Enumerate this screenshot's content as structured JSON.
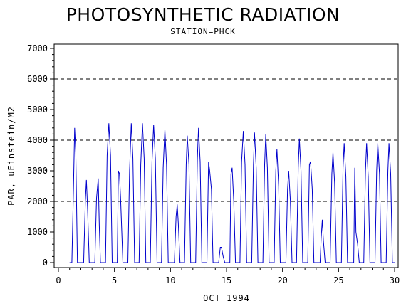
{
  "chart_data": {
    "type": "line",
    "title": "PHOTOSYNTHETIC RADIATION",
    "subtitle": "STATION=PHCK",
    "xlabel": "OCT 1994",
    "ylabel": "PAR, uEinstein/M2",
    "xlim": [
      0,
      30
    ],
    "ylim": [
      0,
      7000
    ],
    "x_ticks": [
      0,
      5,
      10,
      15,
      20,
      25,
      30
    ],
    "y_ticks": [
      0,
      1000,
      2000,
      3000,
      4000,
      5000,
      6000,
      7000
    ],
    "reference_lines_y": [
      2000,
      4000,
      6000
    ],
    "line_color": "#0000cc",
    "series": [
      {
        "values": [
          [
            1.0,
            0
          ],
          [
            1.2,
            0
          ],
          [
            1.35,
            2500
          ],
          [
            1.45,
            4400
          ],
          [
            1.55,
            3600
          ],
          [
            1.7,
            0
          ],
          [
            2.0,
            0
          ],
          [
            2.25,
            0
          ],
          [
            2.4,
            2000
          ],
          [
            2.5,
            2700
          ],
          [
            2.6,
            1800
          ],
          [
            2.75,
            0
          ],
          [
            3.0,
            0
          ],
          [
            3.25,
            0
          ],
          [
            3.4,
            2100
          ],
          [
            3.55,
            2750
          ],
          [
            3.65,
            1200
          ],
          [
            3.75,
            0
          ],
          [
            4.0,
            0
          ],
          [
            4.2,
            0
          ],
          [
            4.35,
            3500
          ],
          [
            4.5,
            4550
          ],
          [
            4.65,
            3500
          ],
          [
            4.8,
            0
          ],
          [
            5.0,
            0
          ],
          [
            5.25,
            0
          ],
          [
            5.35,
            3000
          ],
          [
            5.45,
            2900
          ],
          [
            5.55,
            2100
          ],
          [
            5.75,
            0
          ],
          [
            6.0,
            0
          ],
          [
            6.2,
            0
          ],
          [
            6.35,
            3000
          ],
          [
            6.5,
            4550
          ],
          [
            6.65,
            3400
          ],
          [
            6.8,
            0
          ],
          [
            7.0,
            0
          ],
          [
            7.2,
            0
          ],
          [
            7.35,
            3200
          ],
          [
            7.5,
            4550
          ],
          [
            7.65,
            3400
          ],
          [
            7.8,
            0
          ],
          [
            8.0,
            0
          ],
          [
            8.2,
            0
          ],
          [
            8.35,
            3300
          ],
          [
            8.5,
            4500
          ],
          [
            8.65,
            3400
          ],
          [
            8.8,
            0
          ],
          [
            9.0,
            0
          ],
          [
            9.2,
            0
          ],
          [
            9.35,
            3100
          ],
          [
            9.5,
            4350
          ],
          [
            9.65,
            3200
          ],
          [
            9.8,
            0
          ],
          [
            10.0,
            0
          ],
          [
            10.35,
            0
          ],
          [
            10.5,
            1500
          ],
          [
            10.6,
            1900
          ],
          [
            10.7,
            1300
          ],
          [
            10.85,
            0
          ],
          [
            11.0,
            0
          ],
          [
            11.25,
            0
          ],
          [
            11.4,
            3200
          ],
          [
            11.5,
            4150
          ],
          [
            11.65,
            3200
          ],
          [
            11.8,
            0
          ],
          [
            12.0,
            0
          ],
          [
            12.25,
            0
          ],
          [
            12.4,
            3400
          ],
          [
            12.5,
            4400
          ],
          [
            12.65,
            3300
          ],
          [
            12.8,
            0
          ],
          [
            13.0,
            0
          ],
          [
            13.25,
            0
          ],
          [
            13.4,
            3300
          ],
          [
            13.5,
            3000
          ],
          [
            13.65,
            2400
          ],
          [
            13.8,
            0
          ],
          [
            14.0,
            0
          ],
          [
            14.3,
            0
          ],
          [
            14.45,
            500
          ],
          [
            14.55,
            500
          ],
          [
            14.7,
            200
          ],
          [
            14.85,
            0
          ],
          [
            15.0,
            0
          ],
          [
            15.3,
            0
          ],
          [
            15.4,
            2900
          ],
          [
            15.5,
            3100
          ],
          [
            15.65,
            2000
          ],
          [
            15.8,
            0
          ],
          [
            16.0,
            0
          ],
          [
            16.2,
            0
          ],
          [
            16.35,
            3300
          ],
          [
            16.5,
            4300
          ],
          [
            16.65,
            3200
          ],
          [
            16.8,
            0
          ],
          [
            17.0,
            0
          ],
          [
            17.25,
            0
          ],
          [
            17.4,
            3200
          ],
          [
            17.5,
            4250
          ],
          [
            17.65,
            3100
          ],
          [
            17.8,
            0
          ],
          [
            18.0,
            0
          ],
          [
            18.25,
            0
          ],
          [
            18.4,
            3200
          ],
          [
            18.5,
            4200
          ],
          [
            18.65,
            3100
          ],
          [
            18.8,
            0
          ],
          [
            19.0,
            0
          ],
          [
            19.25,
            0
          ],
          [
            19.4,
            3000
          ],
          [
            19.5,
            3700
          ],
          [
            19.65,
            2500
          ],
          [
            19.8,
            0
          ],
          [
            20.0,
            0
          ],
          [
            20.3,
            0
          ],
          [
            20.45,
            2400
          ],
          [
            20.55,
            3000
          ],
          [
            20.7,
            2000
          ],
          [
            20.85,
            0
          ],
          [
            21.0,
            0
          ],
          [
            21.25,
            0
          ],
          [
            21.4,
            3100
          ],
          [
            21.5,
            4050
          ],
          [
            21.65,
            3000
          ],
          [
            21.8,
            0
          ],
          [
            22.0,
            0
          ],
          [
            22.25,
            0
          ],
          [
            22.4,
            3200
          ],
          [
            22.5,
            3300
          ],
          [
            22.65,
            2400
          ],
          [
            22.8,
            0
          ],
          [
            23.0,
            0
          ],
          [
            23.35,
            0
          ],
          [
            23.45,
            800
          ],
          [
            23.55,
            1400
          ],
          [
            23.65,
            700
          ],
          [
            23.8,
            0
          ],
          [
            24.0,
            0
          ],
          [
            24.25,
            0
          ],
          [
            24.4,
            2900
          ],
          [
            24.5,
            3600
          ],
          [
            24.65,
            2600
          ],
          [
            24.8,
            0
          ],
          [
            25.0,
            0
          ],
          [
            25.25,
            0
          ],
          [
            25.4,
            3100
          ],
          [
            25.5,
            3900
          ],
          [
            25.65,
            2800
          ],
          [
            25.8,
            0
          ],
          [
            26.0,
            0
          ],
          [
            26.35,
            0
          ],
          [
            26.45,
            3100
          ],
          [
            26.55,
            1000
          ],
          [
            26.7,
            600
          ],
          [
            26.85,
            0
          ],
          [
            27.0,
            0
          ],
          [
            27.25,
            0
          ],
          [
            27.4,
            3000
          ],
          [
            27.5,
            3900
          ],
          [
            27.65,
            2800
          ],
          [
            27.8,
            0
          ],
          [
            28.0,
            0
          ],
          [
            28.25,
            0
          ],
          [
            28.4,
            3000
          ],
          [
            28.5,
            3900
          ],
          [
            28.65,
            2900
          ],
          [
            28.8,
            0
          ],
          [
            29.0,
            0
          ],
          [
            29.25,
            0
          ],
          [
            29.4,
            3000
          ],
          [
            29.5,
            3900
          ],
          [
            29.65,
            2900
          ],
          [
            29.8,
            0
          ],
          [
            30.0,
            0
          ]
        ]
      }
    ]
  }
}
